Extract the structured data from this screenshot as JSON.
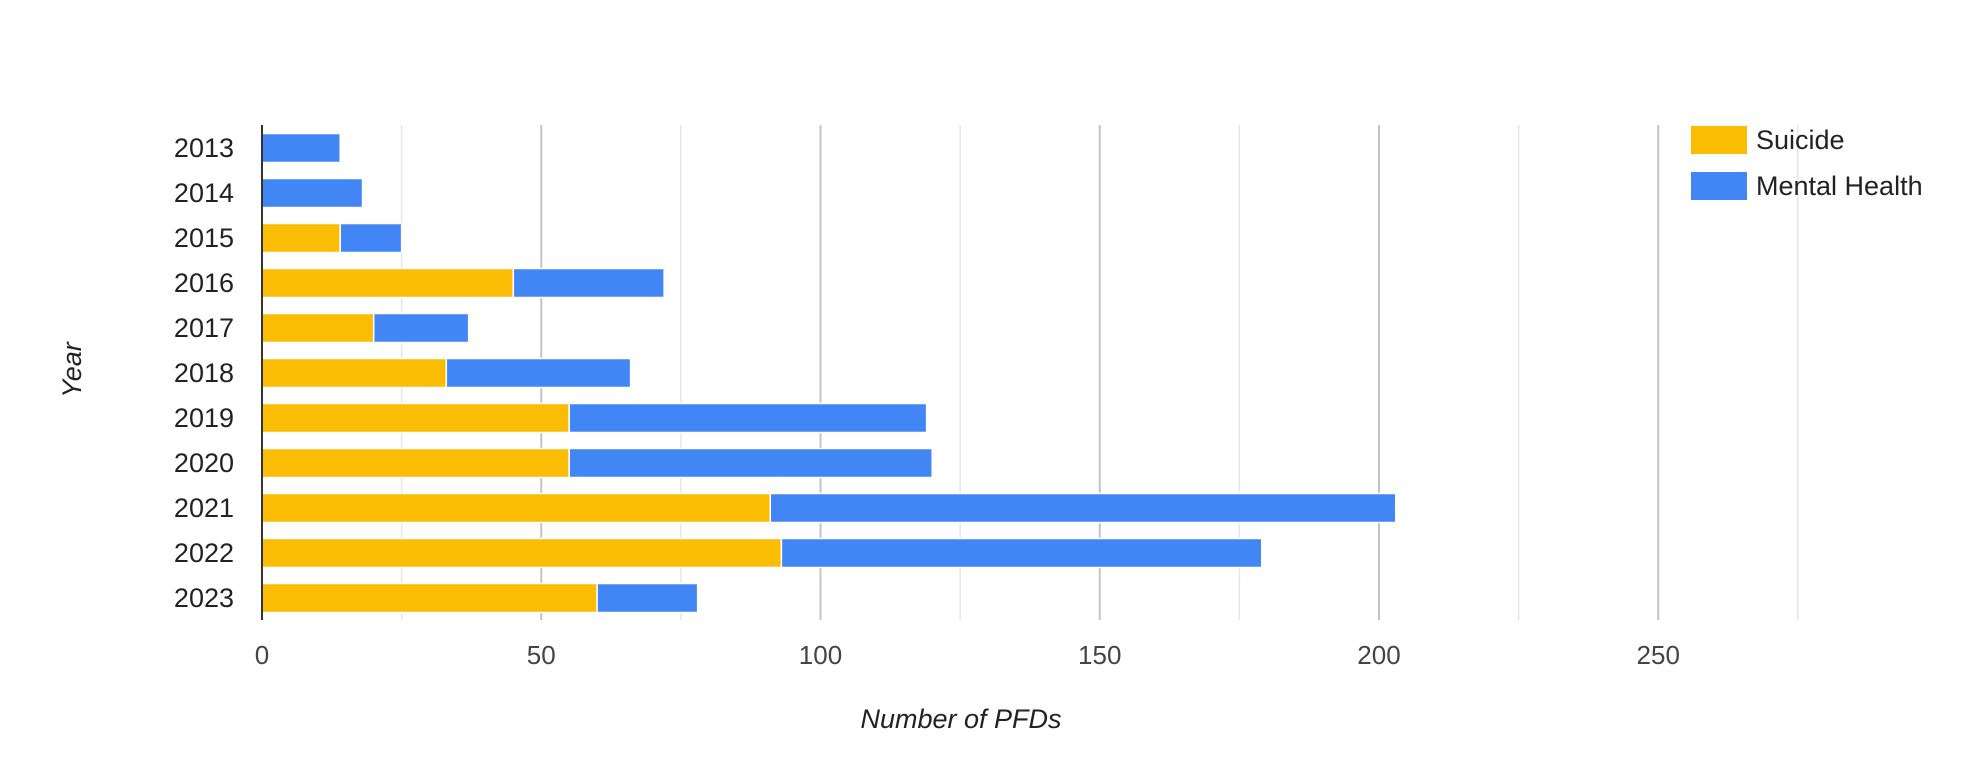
{
  "chart_data": {
    "type": "bar",
    "orientation": "horizontal",
    "stacked": true,
    "categories": [
      "2013",
      "2014",
      "2015",
      "2016",
      "2017",
      "2018",
      "2019",
      "2020",
      "2021",
      "2022",
      "2023"
    ],
    "series": [
      {
        "name": "Suicide",
        "color": "#FBBC04",
        "values": [
          0,
          0,
          14,
          45,
          20,
          33,
          55,
          55,
          91,
          93,
          60
        ]
      },
      {
        "name": "Mental Health",
        "color": "#4285F4",
        "values": [
          14,
          18,
          11,
          27,
          17,
          33,
          64,
          65,
          112,
          86,
          18
        ]
      }
    ],
    "title": "",
    "xlabel": "Number of PFDs",
    "ylabel": "Year",
    "xlim": [
      0,
      300
    ],
    "xticks": [
      "0",
      "50",
      "100",
      "150",
      "200",
      "250"
    ],
    "grid": true,
    "legend_position": "top-right"
  }
}
